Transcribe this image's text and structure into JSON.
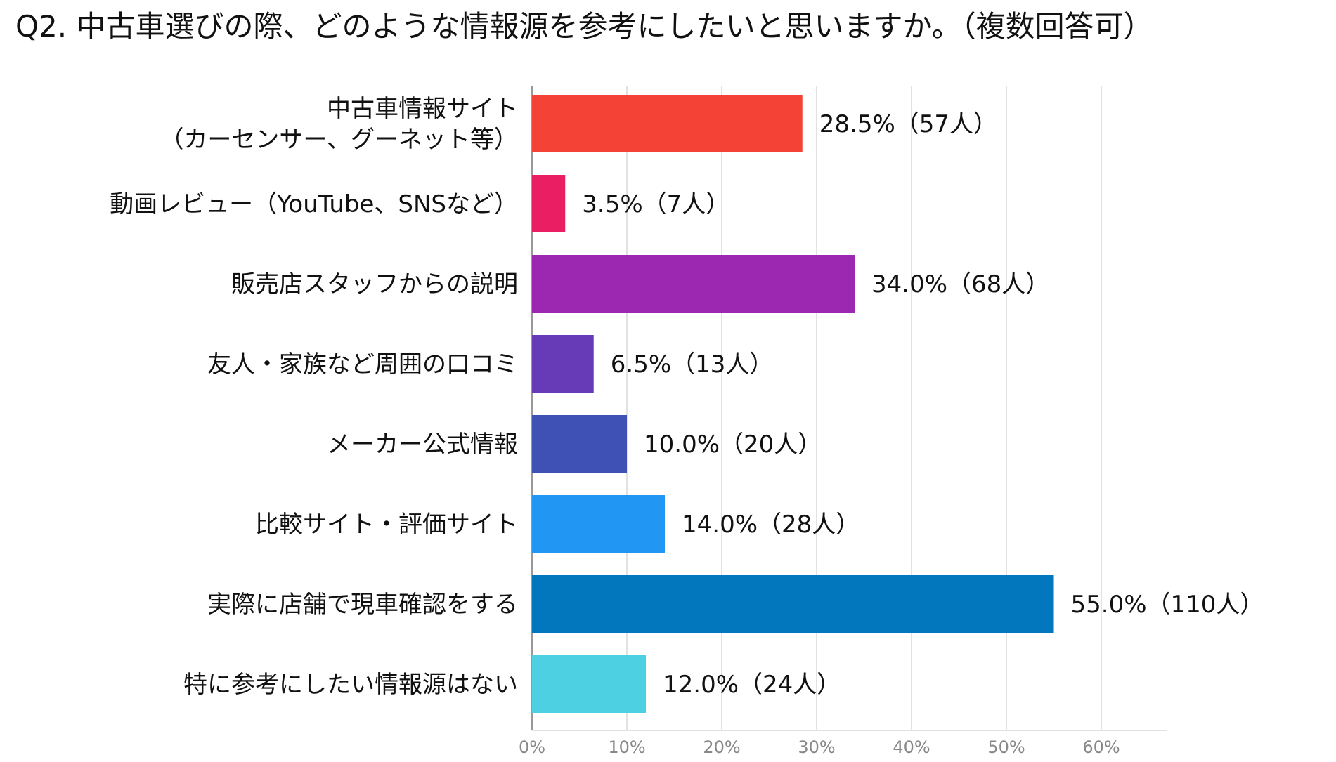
{
  "chart_data": {
    "type": "bar",
    "orientation": "horizontal",
    "title": "Q2. 中古車選びの際、どのような情報源を参考にしたいと思いますか。（複数回答可）",
    "categories": [
      [
        "中古車情報サイト",
        "（カーセンサー、グーネット等）"
      ],
      [
        "動画レビュー（YouTube、SNSなど）"
      ],
      [
        "販売店スタッフからの説明"
      ],
      [
        "友人・家族など周囲の口コミ"
      ],
      [
        "メーカー公式情報"
      ],
      [
        "比較サイト・評価サイト"
      ],
      [
        "実際に店舗で現車確認をする"
      ],
      [
        "特に参考にしたい情報源はない"
      ]
    ],
    "values": [
      28.5,
      3.5,
      34.0,
      6.5,
      10.0,
      14.0,
      55.0,
      12.0
    ],
    "data_labels": [
      "28.5%（57人）",
      "3.5%（7人）",
      "34.0%（68人）",
      "6.5%（13人）",
      "10.0%（20人）",
      "14.0%（28人）",
      "55.0%（110人）",
      "12.0%（24人）"
    ],
    "colors": [
      "#f44336",
      "#e91e63",
      "#9c27b0",
      "#673ab7",
      "#3f51b5",
      "#2196f3",
      "#0277bd",
      "#4dd0e1"
    ],
    "xlabel": "",
    "ylabel": "",
    "xlim": [
      0,
      64
    ],
    "x_ticks": [
      0,
      10,
      20,
      30,
      40,
      50,
      60
    ],
    "x_tick_labels": [
      "0%",
      "10%",
      "20%",
      "30%",
      "40%",
      "50%",
      "60%"
    ],
    "grid": true,
    "legend": "none"
  }
}
